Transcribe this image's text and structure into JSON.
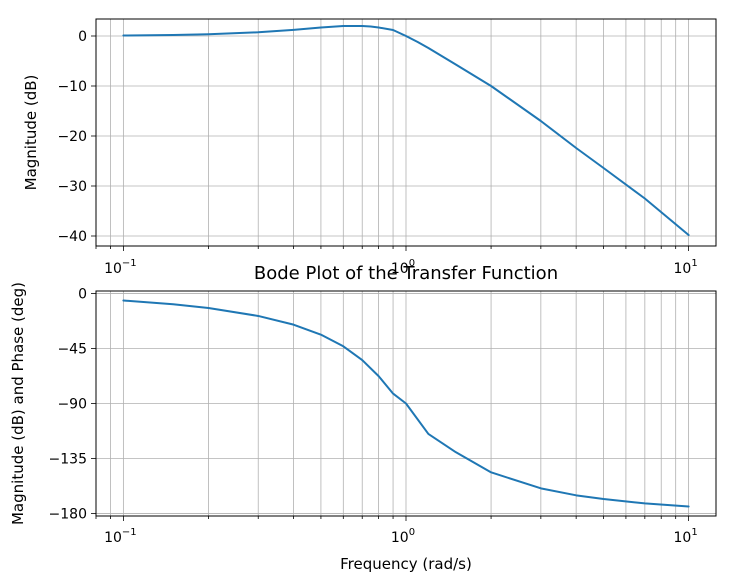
{
  "chart_data": [
    {
      "type": "line",
      "panel": "top",
      "title": "",
      "xlabel": "",
      "ylabel": "Magnitude (dB)",
      "xscale": "log",
      "xlim": [
        0.08,
        12.5
      ],
      "ylim": [
        -42,
        3.4
      ],
      "grid": true,
      "grid_which": "both",
      "xticks": [
        0.1,
        1,
        10
      ],
      "xtick_labels": [
        {
          "base": "10",
          "exp": "−1"
        },
        {
          "base": "10",
          "exp": "0"
        },
        {
          "base": "10",
          "exp": "1"
        }
      ],
      "yticks": [
        0,
        -10,
        -20,
        -30,
        -40
      ],
      "ytick_labels": [
        "0",
        "−10",
        "−20",
        "−30",
        "−40"
      ],
      "line_color": "#1f77b4",
      "series": [
        {
          "x": [
            0.1,
            0.15,
            0.2,
            0.3,
            0.4,
            0.5,
            0.6,
            0.7,
            0.75,
            0.8,
            0.9,
            1.0,
            1.1,
            1.2,
            1.5,
            2,
            3,
            4,
            5,
            7,
            10
          ],
          "y": [
            0.09,
            0.19,
            0.34,
            0.74,
            1.23,
            1.69,
            2.0,
            2.0,
            1.9,
            1.7,
            1.2,
            0.0,
            -1.2,
            -2.4,
            -5.7,
            -10.0,
            -17.0,
            -22.4,
            -26.4,
            -32.5,
            -39.8
          ]
        }
      ]
    },
    {
      "type": "line",
      "panel": "bottom",
      "title": "Bode Plot of the Transfer Function",
      "xlabel": "Frequency (rad/s)",
      "ylabel": "Magnitude (dB) and Phase (deg)",
      "xscale": "log",
      "xlim": [
        0.08,
        12.5
      ],
      "ylim": [
        -182,
        2
      ],
      "grid": true,
      "grid_which": "both",
      "xticks": [
        0.1,
        1,
        10
      ],
      "xtick_labels": [
        {
          "base": "10",
          "exp": "−1"
        },
        {
          "base": "10",
          "exp": "0"
        },
        {
          "base": "10",
          "exp": "1"
        }
      ],
      "yticks": [
        0,
        -45,
        -90,
        -135,
        -180
      ],
      "ytick_labels": [
        "0",
        "−45",
        "−90",
        "−135",
        "−180"
      ],
      "line_color": "#1f77b4",
      "series": [
        {
          "x": [
            0.1,
            0.15,
            0.2,
            0.3,
            0.4,
            0.5,
            0.6,
            0.7,
            0.8,
            0.9,
            1.0,
            1.2,
            1.5,
            2,
            3,
            4,
            5,
            7,
            10
          ],
          "y": [
            -5.8,
            -8.8,
            -11.9,
            -18.4,
            -25.5,
            -33.7,
            -43.2,
            -54.5,
            -67.6,
            -81.9,
            -90.0,
            -114.9,
            -129.8,
            -146.3,
            -159.4,
            -165.1,
            -168.1,
            -171.7,
            -174.2
          ]
        }
      ]
    }
  ]
}
